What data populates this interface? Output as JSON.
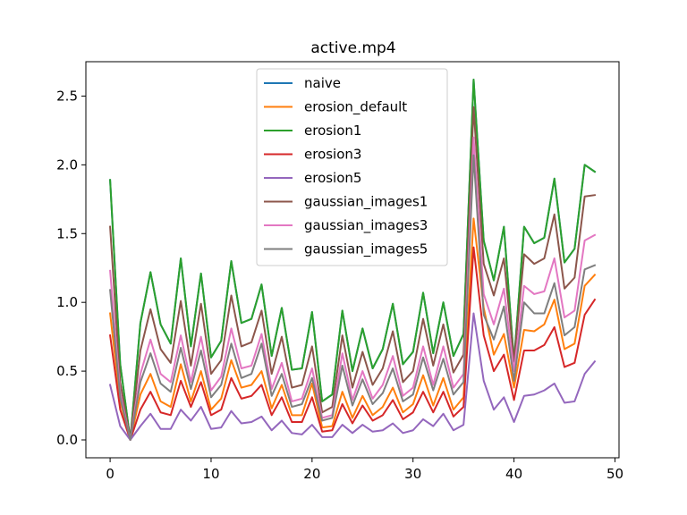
{
  "chart_data": {
    "type": "line",
    "title": "active.mp4",
    "xlabel": "",
    "ylabel": "",
    "xlim": [
      -2.4,
      50.4
    ],
    "ylim": [
      -0.13,
      2.75
    ],
    "xticks": [
      0,
      10,
      20,
      30,
      40,
      50
    ],
    "yticks": [
      0.0,
      0.5,
      1.0,
      1.5,
      2.0,
      2.5
    ],
    "ytick_labels": [
      "0.0",
      "0.5",
      "1.0",
      "1.5",
      "2.0",
      "2.5"
    ],
    "grid": false,
    "legend_position": "upper-center",
    "x": [
      0,
      1,
      2,
      3,
      4,
      5,
      6,
      7,
      8,
      9,
      10,
      11,
      12,
      13,
      14,
      15,
      16,
      17,
      18,
      19,
      20,
      21,
      22,
      23,
      24,
      25,
      26,
      27,
      28,
      29,
      30,
      31,
      32,
      33,
      34,
      35,
      36,
      37,
      38,
      39,
      40,
      41,
      42,
      43,
      44,
      45,
      46,
      47,
      48
    ],
    "series": [
      {
        "name": "naive",
        "color": "#1f77b4",
        "values": [
          1.89,
          0.55,
          0.0,
          0.85,
          1.22,
          0.84,
          0.7,
          1.32,
          0.68,
          1.21,
          0.6,
          0.72,
          1.3,
          0.85,
          0.88,
          1.13,
          0.61,
          0.96,
          0.51,
          0.52,
          0.93,
          0.28,
          0.33,
          0.94,
          0.5,
          0.81,
          0.52,
          0.66,
          0.99,
          0.55,
          0.64,
          1.07,
          0.63,
          1.0,
          0.61,
          0.77,
          2.62,
          1.45,
          1.16,
          1.55,
          0.57,
          1.55,
          1.43,
          1.47,
          1.9,
          1.29,
          1.39,
          2.0,
          1.95
        ]
      },
      {
        "name": "erosion_default",
        "color": "#ff7f0e",
        "values": [
          0.92,
          0.28,
          0.0,
          0.33,
          0.48,
          0.28,
          0.24,
          0.55,
          0.28,
          0.5,
          0.22,
          0.3,
          0.58,
          0.38,
          0.4,
          0.5,
          0.23,
          0.4,
          0.18,
          0.18,
          0.41,
          0.09,
          0.1,
          0.35,
          0.16,
          0.32,
          0.18,
          0.24,
          0.38,
          0.2,
          0.26,
          0.47,
          0.25,
          0.45,
          0.22,
          0.31,
          1.61,
          0.96,
          0.62,
          0.77,
          0.38,
          0.8,
          0.79,
          0.84,
          1.02,
          0.66,
          0.7,
          1.12,
          1.2
        ]
      },
      {
        "name": "erosion1",
        "color": "#2ca02c",
        "values": [
          1.89,
          0.55,
          0.0,
          0.85,
          1.22,
          0.84,
          0.7,
          1.32,
          0.68,
          1.21,
          0.6,
          0.72,
          1.3,
          0.85,
          0.88,
          1.13,
          0.61,
          0.96,
          0.51,
          0.52,
          0.93,
          0.28,
          0.33,
          0.94,
          0.5,
          0.81,
          0.52,
          0.66,
          0.99,
          0.55,
          0.64,
          1.07,
          0.63,
          1.0,
          0.61,
          0.77,
          2.62,
          1.45,
          1.16,
          1.55,
          0.57,
          1.55,
          1.43,
          1.47,
          1.9,
          1.29,
          1.39,
          2.0,
          1.95
        ]
      },
      {
        "name": "erosion3",
        "color": "#d62728",
        "values": [
          0.76,
          0.22,
          0.0,
          0.22,
          0.35,
          0.2,
          0.18,
          0.43,
          0.24,
          0.42,
          0.18,
          0.22,
          0.45,
          0.3,
          0.32,
          0.4,
          0.18,
          0.31,
          0.13,
          0.13,
          0.31,
          0.06,
          0.07,
          0.26,
          0.12,
          0.25,
          0.14,
          0.18,
          0.29,
          0.15,
          0.2,
          0.35,
          0.2,
          0.35,
          0.17,
          0.24,
          1.4,
          0.76,
          0.5,
          0.62,
          0.29,
          0.65,
          0.65,
          0.69,
          0.82,
          0.53,
          0.56,
          0.91,
          1.02
        ]
      },
      {
        "name": "erosion5",
        "color": "#9467bd",
        "values": [
          0.4,
          0.1,
          0.0,
          0.1,
          0.19,
          0.08,
          0.08,
          0.22,
          0.14,
          0.24,
          0.08,
          0.09,
          0.21,
          0.12,
          0.13,
          0.17,
          0.07,
          0.14,
          0.05,
          0.04,
          0.11,
          0.02,
          0.02,
          0.11,
          0.05,
          0.11,
          0.06,
          0.07,
          0.12,
          0.05,
          0.07,
          0.15,
          0.1,
          0.19,
          0.07,
          0.11,
          0.92,
          0.43,
          0.22,
          0.31,
          0.13,
          0.32,
          0.33,
          0.36,
          0.41,
          0.27,
          0.28,
          0.48,
          0.57
        ]
      },
      {
        "name": "gaussian_images1",
        "color": "#8c564b",
        "values": [
          1.55,
          0.42,
          0.0,
          0.65,
          0.95,
          0.66,
          0.56,
          1.01,
          0.54,
          0.99,
          0.48,
          0.58,
          1.05,
          0.68,
          0.71,
          0.94,
          0.48,
          0.75,
          0.38,
          0.4,
          0.68,
          0.2,
          0.24,
          0.76,
          0.38,
          0.64,
          0.4,
          0.52,
          0.79,
          0.42,
          0.5,
          0.88,
          0.54,
          0.84,
          0.49,
          0.62,
          2.42,
          1.28,
          1.05,
          1.32,
          0.57,
          1.35,
          1.28,
          1.32,
          1.64,
          1.1,
          1.18,
          1.77,
          1.78
        ]
      },
      {
        "name": "gaussian_images3",
        "color": "#e377c2",
        "values": [
          1.23,
          0.34,
          0.0,
          0.48,
          0.73,
          0.48,
          0.42,
          0.76,
          0.42,
          0.75,
          0.36,
          0.46,
          0.81,
          0.52,
          0.54,
          0.77,
          0.37,
          0.56,
          0.28,
          0.3,
          0.52,
          0.16,
          0.18,
          0.63,
          0.29,
          0.5,
          0.3,
          0.4,
          0.61,
          0.32,
          0.38,
          0.68,
          0.4,
          0.68,
          0.38,
          0.48,
          2.2,
          1.06,
          0.84,
          1.1,
          0.5,
          1.12,
          1.06,
          1.08,
          1.32,
          0.89,
          0.94,
          1.45,
          1.49
        ]
      },
      {
        "name": "gaussian_images5",
        "color": "#7f7f7f",
        "values": [
          1.09,
          0.31,
          0.0,
          0.42,
          0.63,
          0.41,
          0.35,
          0.67,
          0.37,
          0.65,
          0.31,
          0.4,
          0.7,
          0.45,
          0.48,
          0.7,
          0.32,
          0.48,
          0.24,
          0.26,
          0.45,
          0.14,
          0.16,
          0.54,
          0.25,
          0.44,
          0.26,
          0.34,
          0.52,
          0.28,
          0.33,
          0.6,
          0.36,
          0.59,
          0.33,
          0.42,
          2.07,
          0.91,
          0.73,
          0.97,
          0.43,
          1.0,
          0.92,
          0.92,
          1.14,
          0.76,
          0.82,
          1.24,
          1.27
        ]
      }
    ]
  }
}
